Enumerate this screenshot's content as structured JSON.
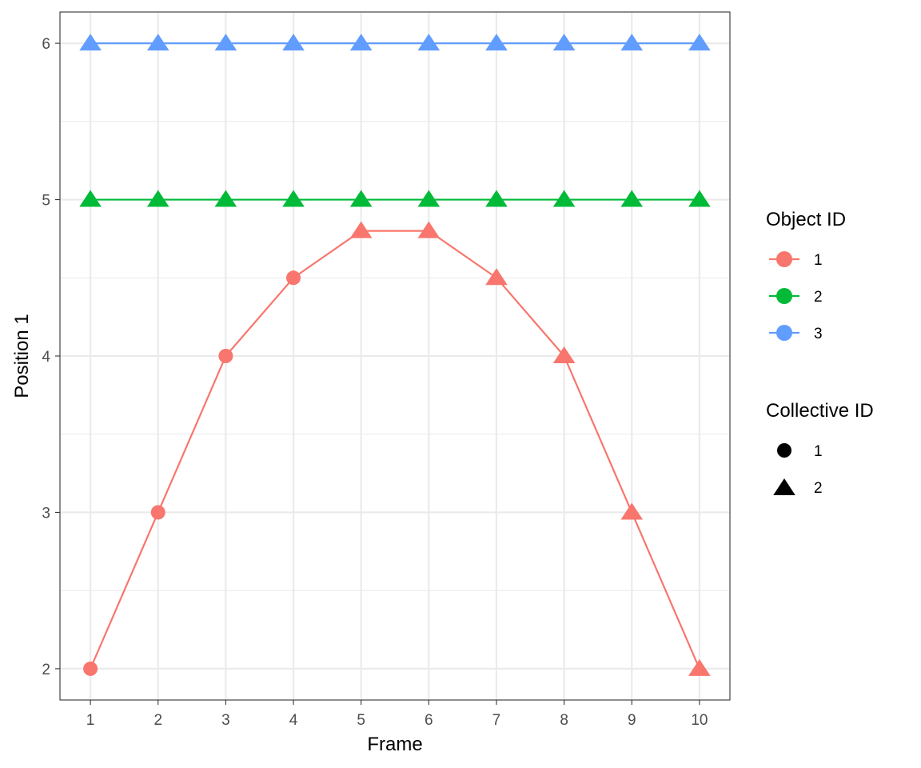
{
  "chart_data": {
    "type": "line",
    "xlabel": "Frame",
    "ylabel": "Position 1",
    "x": [
      1,
      2,
      3,
      4,
      5,
      6,
      7,
      8,
      9,
      10
    ],
    "x_ticks": [
      "1",
      "2",
      "3",
      "4",
      "5",
      "6",
      "7",
      "8",
      "9",
      "10"
    ],
    "y_ticks": [
      "2",
      "3",
      "4",
      "5",
      "6"
    ],
    "xlim": [
      0.55,
      10.45
    ],
    "ylim": [
      1.8,
      6.2
    ],
    "grid": true,
    "legend_position": "right",
    "series": [
      {
        "name": "1",
        "color": "#F8766D",
        "values": [
          2,
          3,
          4,
          4.5,
          4.8,
          4.8,
          4.5,
          4,
          3,
          2
        ],
        "collective": [
          "1",
          "1",
          "1",
          "1",
          "2",
          "2",
          "2",
          "2",
          "2",
          "2"
        ]
      },
      {
        "name": "2",
        "color": "#00BA38",
        "values": [
          5,
          5,
          5,
          5,
          5,
          5,
          5,
          5,
          5,
          5
        ],
        "collective": [
          "2",
          "2",
          "2",
          "2",
          "2",
          "2",
          "2",
          "2",
          "2",
          "2"
        ]
      },
      {
        "name": "3",
        "color": "#619CFF",
        "values": [
          6,
          6,
          6,
          6,
          6,
          6,
          6,
          6,
          6,
          6
        ],
        "collective": [
          "2",
          "2",
          "2",
          "2",
          "2",
          "2",
          "2",
          "2",
          "2",
          "2"
        ]
      }
    ],
    "legends": {
      "color": {
        "title": "Object ID",
        "items": [
          {
            "label": "1",
            "color": "#F8766D"
          },
          {
            "label": "2",
            "color": "#00BA38"
          },
          {
            "label": "3",
            "color": "#619CFF"
          }
        ]
      },
      "shape": {
        "title": "Collective ID",
        "items": [
          {
            "label": "1",
            "shape": "circle"
          },
          {
            "label": "2",
            "shape": "triangle"
          }
        ]
      }
    }
  }
}
